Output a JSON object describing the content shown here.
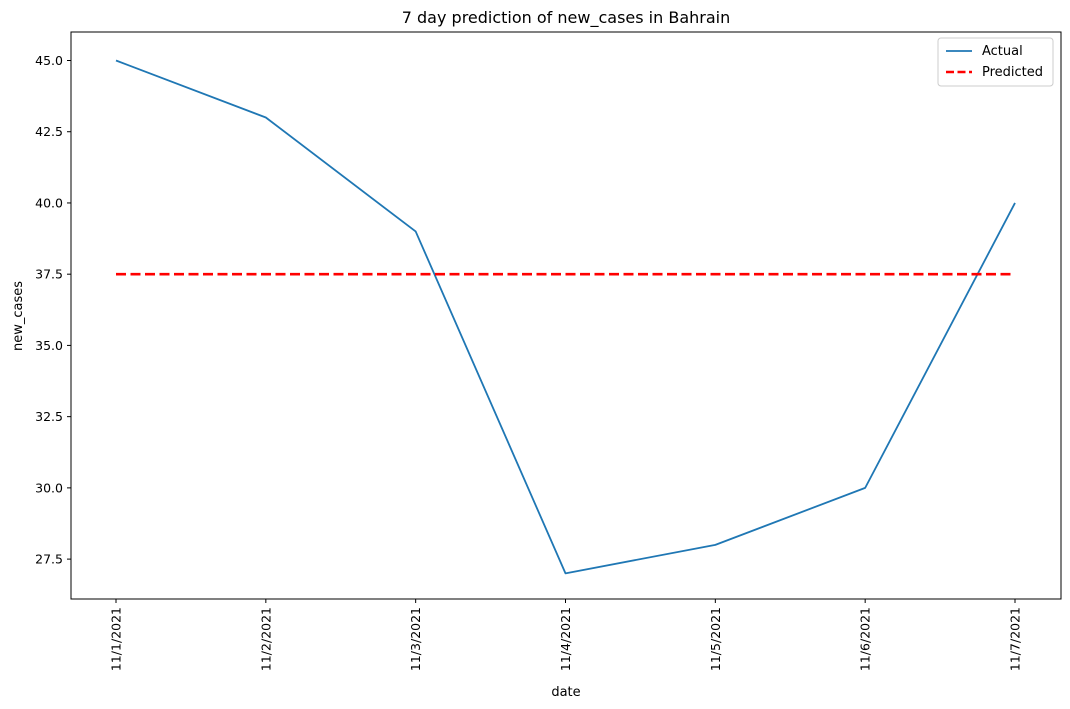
{
  "chart_data": {
    "type": "line",
    "title": "7 day prediction of new_cases in Bahrain",
    "xlabel": "date",
    "ylabel": "new_cases",
    "categories": [
      "11/1/2021",
      "11/2/2021",
      "11/3/2021",
      "11/4/2021",
      "11/5/2021",
      "11/6/2021",
      "11/7/2021"
    ],
    "ylim": [
      26.1,
      46.0
    ],
    "yticks": [
      27.5,
      30.0,
      32.5,
      35.0,
      37.5,
      40.0,
      42.5,
      45.0
    ],
    "grid": false,
    "legend_position": "top-right",
    "series": [
      {
        "name": "Actual",
        "values": [
          45,
          43,
          39,
          27,
          28,
          30,
          40
        ],
        "color": "#1f77b4",
        "style": "solid"
      },
      {
        "name": "Predicted",
        "values": [
          37.5,
          37.5,
          37.5,
          37.5,
          37.5,
          37.5,
          37.5
        ],
        "color": "#ff0000",
        "style": "dashed"
      }
    ]
  }
}
